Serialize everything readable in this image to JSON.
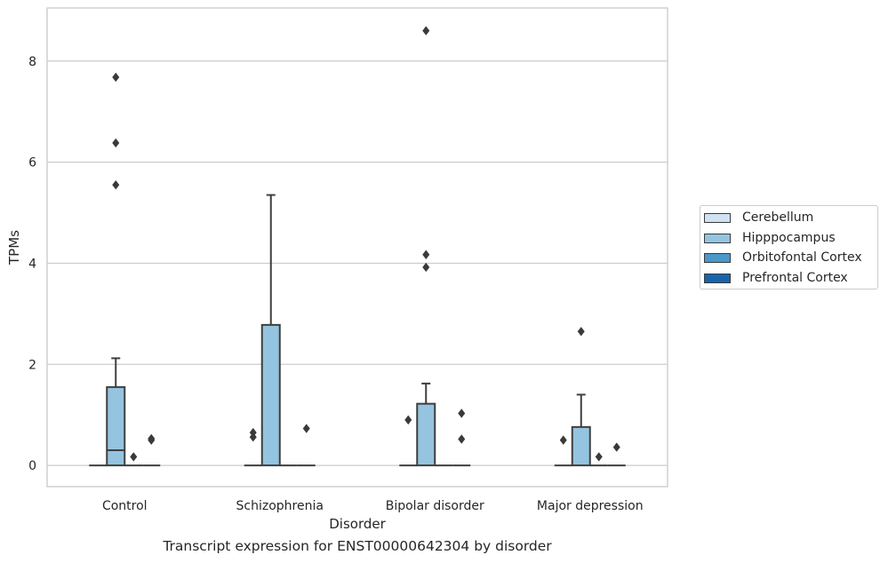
{
  "chart_data": {
    "type": "box",
    "title": "Transcript expression for ENST00000642304 by disorder",
    "xlabel": "Disorder",
    "ylabel": "TPMs",
    "ylim": [
      -0.42,
      9.05
    ],
    "yticks": [
      0,
      2,
      4,
      6,
      8
    ],
    "categories": [
      "Control",
      "Schizophrenia",
      "Bipolar disorder",
      "Major depression"
    ],
    "grid": "horizontal",
    "legend_position": "right",
    "series": [
      {
        "name": "Cerebellum",
        "color": "#d0e1f2",
        "boxes": [
          {
            "min": 0,
            "q1": 0,
            "median": 0,
            "q3": 0,
            "max": 0,
            "outliers": []
          },
          {
            "min": 0,
            "q1": 0,
            "median": 0,
            "q3": 0,
            "max": 0,
            "outliers": []
          },
          {
            "min": 0,
            "q1": 0,
            "median": 0,
            "q3": 0,
            "max": 0,
            "outliers": []
          },
          {
            "min": 0,
            "q1": 0,
            "median": 0,
            "q3": 0,
            "max": 0,
            "outliers": []
          }
        ]
      },
      {
        "name": "Hipppocampus",
        "color": "#94c4df",
        "boxes": [
          {
            "min": 0,
            "q1": 0,
            "median": 0.3,
            "q3": 1.55,
            "max": 2.12,
            "outliers": [
              5.55,
              6.38,
              7.68
            ]
          },
          {
            "min": 0,
            "q1": 0,
            "median": 0,
            "q3": 2.78,
            "max": 5.35,
            "outliers": []
          },
          {
            "min": 0,
            "q1": 0,
            "median": 0,
            "q3": 1.22,
            "max": 1.62,
            "outliers": [
              3.92,
              4.17,
              8.6
            ]
          },
          {
            "min": 0,
            "q1": 0,
            "median": 0,
            "q3": 0.76,
            "max": 1.4,
            "outliers": [
              2.65
            ]
          }
        ]
      },
      {
        "name": "Orbitofontal Cortex",
        "color": "#4a98c9",
        "boxes": [
          {
            "min": 0,
            "q1": 0,
            "median": 0,
            "q3": 0,
            "max": 0,
            "outliers": [
              0.17
            ]
          },
          {
            "min": 0,
            "q1": 0,
            "median": 0,
            "q3": 0,
            "max": 0,
            "outliers": []
          },
          {
            "min": 0,
            "q1": 0,
            "median": 0,
            "q3": 0,
            "max": 0,
            "outliers": []
          },
          {
            "min": 0,
            "q1": 0,
            "median": 0,
            "q3": 0,
            "max": 0,
            "outliers": [
              0.17
            ]
          }
        ]
      },
      {
        "name": "Prefrontal Cortex",
        "color": "#1764ab",
        "boxes": [
          {
            "min": 0,
            "q1": 0,
            "median": 0,
            "q3": 0,
            "max": 0,
            "outliers": [
              0.5,
              0.53
            ]
          },
          {
            "min": 0,
            "q1": 0,
            "median": 0,
            "q3": 0,
            "max": 0,
            "outliers": [
              0.73
            ]
          },
          {
            "min": 0,
            "q1": 0,
            "median": 0,
            "q3": 0,
            "max": 0,
            "outliers": [
              0.52,
              1.03
            ]
          },
          {
            "min": 0,
            "q1": 0,
            "median": 0,
            "q3": 0,
            "max": 0,
            "outliers": [
              0.36
            ]
          }
        ]
      }
    ],
    "extra_outliers": [
      {
        "category": "Schizophrenia",
        "series": "Cerebellum",
        "values": [
          0.56,
          0.65
        ]
      },
      {
        "category": "Bipolar disorder",
        "series": "Cerebellum",
        "values": [
          0.9
        ]
      },
      {
        "category": "Major depression",
        "series": "Cerebellum",
        "values": [
          0.5
        ]
      }
    ]
  },
  "legend": {
    "items": [
      {
        "label": "Cerebellum",
        "color": "#d0e1f2"
      },
      {
        "label": "Hipppocampus",
        "color": "#94c4df"
      },
      {
        "label": "Orbitofontal Cortex",
        "color": "#4a98c9"
      },
      {
        "label": "Prefrontal Cortex",
        "color": "#1764ab"
      }
    ]
  },
  "colors": {
    "frame": "#cccccc",
    "grid": "#cccccc",
    "lines": "#3f3f3f",
    "outlier": "#3a3a3a"
  }
}
